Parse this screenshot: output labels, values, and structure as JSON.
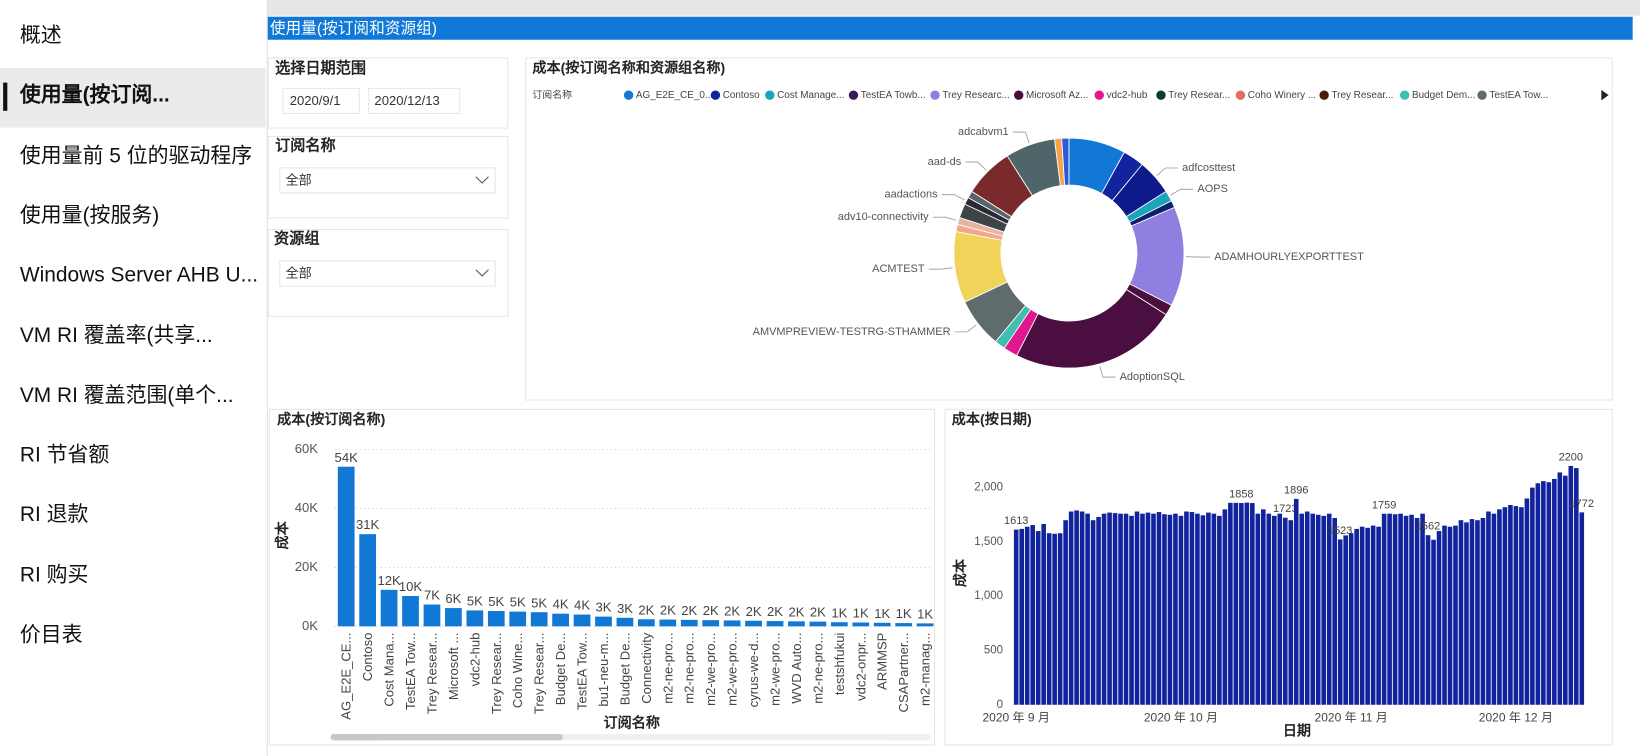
{
  "nav": {
    "items": [
      "概述",
      "使用量(按订阅...",
      "使用量前 5 位的驱动程序",
      "使用量(按服务)",
      "Windows Server AHB U...",
      "VM RI 覆盖率(共享...",
      "VM RI 覆盖范围(单个...",
      "RI 节省额",
      "RI 退款",
      "RI 购买",
      "价目表"
    ],
    "selected": 1
  },
  "header": {
    "title": "使用量(按订阅和资源组)"
  },
  "filters": {
    "date_range": {
      "label": "选择日期范围",
      "start": "2020/9/1",
      "end": "2020/12/13"
    },
    "subscription": {
      "label": "订阅名称",
      "value": "全部"
    },
    "resource_group": {
      "label": "资源组",
      "value": "全部"
    }
  },
  "chart_data": [
    {
      "type": "pie",
      "donut": true,
      "title": "成本(按订阅名称和资源组名称)",
      "legend_title": "订阅名称",
      "legend": [
        {
          "name": "AG_E2E_CE_0...",
          "color": "#1178d6"
        },
        {
          "name": "Contoso",
          "color": "#12239e"
        },
        {
          "name": "Cost Manage...",
          "color": "#1aa5b8"
        },
        {
          "name": "TestEA Towb...",
          "color": "#3b1a5a"
        },
        {
          "name": "Trey Researc...",
          "color": "#8f7fe0"
        },
        {
          "name": "Microsoft Az...",
          "color": "#4a0f3f"
        },
        {
          "name": "vdc2-hub",
          "color": "#e0178f"
        },
        {
          "name": "Trey Resear...",
          "color": "#0d3b2e"
        },
        {
          "name": "Coho Winery ...",
          "color": "#e3705a"
        },
        {
          "name": "Trey Resear...",
          "color": "#4a1a0a"
        },
        {
          "name": "Budget Dem...",
          "color": "#3fbfaf"
        },
        {
          "name": "TestEA Tow...",
          "color": "#5f6b6d"
        }
      ],
      "categories": [
        null,
        null,
        "adfcosttest",
        "AOPS",
        null,
        "ADAMHOURLYEXPORTTEST",
        null,
        "AdoptionSQL",
        null,
        null,
        "AMVMPREVIEW-TESTRG-STHAMMER",
        "ACMTEST",
        null,
        "adv10-connectivity",
        null,
        "aadactions",
        null,
        "aad-ds",
        "adcabvm1",
        null,
        null
      ],
      "values": [
        8,
        3,
        5,
        1.5,
        1,
        14,
        1.5,
        23.5,
        2,
        1.5,
        7,
        10,
        1,
        1,
        2,
        1,
        1,
        7,
        7,
        1,
        1
      ],
      "colors": [
        "#1178d6",
        "#12239e",
        "#0e1a8a",
        "#1aa5b8",
        "#0d1f6e",
        "#8f7fe0",
        "#4a0f3f",
        "#4a0f40",
        "#e0178f",
        "#3fbfaf",
        "#5f6b6d",
        "#f2d35a",
        "#f2a78a",
        "#e8b4a0",
        "#3c4446",
        "#2a2a35",
        "#5a6468",
        "#7a2a2a",
        "#4f6569",
        "#f5a34a",
        "#2a5ad8"
      ]
    },
    {
      "type": "bar",
      "title": "成本(按订阅名称)",
      "x_label": "订阅名称",
      "y_label": "成本",
      "color": "#1178d6",
      "grid": true,
      "categories": [
        "AG_E2E_CE...",
        "Contoso",
        "Cost Mana...",
        "TestEA Tow...",
        "Trey Resear...",
        "Microsoft ...",
        "vdc2-hub",
        "Trey Resear...",
        "Coho Wine...",
        "Trey Resear...",
        "Budget De...",
        "TestEA Tow...",
        "bu1-neu-m...",
        "Budget De...",
        "Connectivity",
        "m2-ne-pro...",
        "m2-ne-pro...",
        "m2-we-pro...",
        "m2-we-pro...",
        "cyrus-we-d...",
        "m2-we-pro...",
        "WVD Auto...",
        "m2-ne-pro...",
        "testshfukui",
        "vdc2-onpr...",
        "ARMMSP",
        "CSAPartner...",
        "m2-manag..."
      ],
      "values": [
        54200,
        31300,
        12400,
        10300,
        7400,
        6200,
        5400,
        5200,
        5000,
        4800,
        4300,
        4000,
        3300,
        2900,
        2400,
        2300,
        2200,
        2100,
        2000,
        1900,
        1800,
        1700,
        1600,
        1400,
        1300,
        1200,
        1100,
        1000
      ],
      "value_labels": [
        "54K",
        "31K",
        "12K",
        "10K",
        "7K",
        "6K",
        "5K",
        "5K",
        "5K",
        "5K",
        "4K",
        "4K",
        "3K",
        "3K",
        "2K",
        "2K",
        "2K",
        "2K",
        "2K",
        "2K",
        "2K",
        "2K",
        "2K",
        "1K",
        "1K",
        "1K",
        "1K",
        "1K"
      ],
      "ylim": [
        0,
        60000
      ],
      "yticks": [
        {
          "value": 0,
          "label": "0K"
        },
        {
          "value": 20000,
          "label": "20K"
        },
        {
          "value": 40000,
          "label": "40K"
        },
        {
          "value": 60000,
          "label": "60K"
        }
      ]
    },
    {
      "type": "bar",
      "title": "成本(按日期)",
      "x_label": "日期",
      "y_label": "成本",
      "color": "#12239e",
      "grid": false,
      "categories": [
        "2020 年 9 月",
        null,
        null,
        null,
        null,
        null,
        null,
        null,
        null,
        null,
        null,
        null,
        null,
        null,
        null,
        null,
        null,
        null,
        null,
        null,
        null,
        null,
        null,
        null,
        null,
        null,
        null,
        null,
        null,
        null,
        "2020 年 10 月",
        null,
        null,
        null,
        null,
        null,
        null,
        null,
        null,
        null,
        null,
        null,
        null,
        null,
        null,
        null,
        null,
        null,
        null,
        null,
        null,
        null,
        null,
        null,
        null,
        null,
        null,
        null,
        null,
        null,
        null,
        "2020 年 11 月",
        null,
        null,
        null,
        null,
        null,
        null,
        null,
        null,
        null,
        null,
        null,
        null,
        null,
        null,
        null,
        null,
        null,
        null,
        null,
        null,
        null,
        null,
        null,
        null,
        null,
        null,
        null,
        null,
        null,
        "2020 年 12 月",
        null,
        null,
        null,
        null,
        null,
        null,
        null,
        null,
        null,
        null,
        null,
        null
      ],
      "values": [
        1613,
        1620,
        1640,
        1655,
        1600,
        1665,
        1580,
        1575,
        1580,
        1700,
        1780,
        1790,
        1780,
        1760,
        1700,
        1730,
        1760,
        1770,
        1765,
        1760,
        1760,
        1740,
        1780,
        1760,
        1770,
        1760,
        1775,
        1755,
        1750,
        1760,
        1740,
        1780,
        1775,
        1760,
        1745,
        1770,
        1760,
        1740,
        1800,
        1860,
        1860,
        1858,
        1862,
        1858,
        1760,
        1800,
        1760,
        1740,
        1760,
        1723,
        1700,
        1896,
        1760,
        1780,
        1760,
        1750,
        1740,
        1760,
        1720,
        1523,
        1560,
        1580,
        1620,
        1640,
        1630,
        1650,
        1640,
        1759,
        1760,
        1755,
        1760,
        1740,
        1750,
        1720,
        1760,
        1562,
        1520,
        1600,
        1650,
        1640,
        1650,
        1700,
        1680,
        1710,
        1700,
        1720,
        1780,
        1760,
        1800,
        1820,
        1840,
        1830,
        1820,
        1900,
        2000,
        2040,
        2060,
        2050,
        2080,
        2140,
        2110,
        2200,
        2180,
        1772
      ],
      "value_labels": [
        "1613",
        null,
        null,
        null,
        null,
        null,
        null,
        null,
        null,
        null,
        null,
        null,
        null,
        null,
        null,
        null,
        null,
        null,
        null,
        null,
        null,
        null,
        null,
        null,
        null,
        null,
        null,
        null,
        null,
        null,
        null,
        null,
        null,
        null,
        null,
        null,
        null,
        null,
        null,
        null,
        null,
        "1858",
        null,
        null,
        null,
        null,
        null,
        null,
        null,
        "1723",
        null,
        "1896",
        null,
        null,
        null,
        null,
        null,
        null,
        null,
        "1523",
        null,
        null,
        null,
        null,
        null,
        null,
        null,
        "1759",
        null,
        null,
        null,
        null,
        null,
        null,
        null,
        "1562",
        null,
        null,
        null,
        null,
        null,
        null,
        null,
        null,
        null,
        null,
        null,
        null,
        null,
        null,
        null,
        null,
        null,
        null,
        null,
        null,
        null,
        null,
        null,
        null,
        null,
        "2200",
        null,
        "1772"
      ],
      "ylim": [
        0,
        2350
      ],
      "yticks": [
        0,
        500,
        {
          "value": 1000,
          "label": "1,000"
        },
        {
          "value": 1500,
          "label": "1,500"
        },
        {
          "value": 2000,
          "label": "2,000"
        }
      ]
    }
  ]
}
